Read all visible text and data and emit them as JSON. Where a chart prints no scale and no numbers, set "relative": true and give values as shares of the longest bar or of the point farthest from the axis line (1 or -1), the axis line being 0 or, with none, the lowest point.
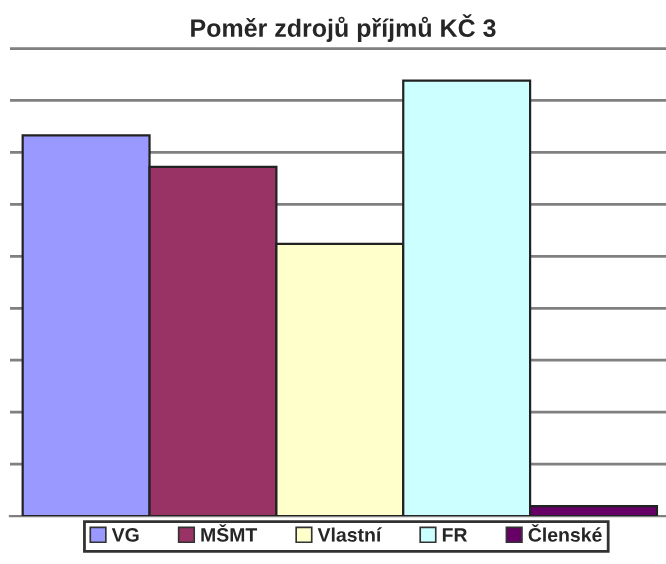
{
  "chart_data": {
    "type": "bar",
    "title": "Poměr zdrojů příjmů KČ 3",
    "relative": true,
    "categories": [
      null
    ],
    "grid": "y",
    "legend": "bottom",
    "series": [
      {
        "name": "VG",
        "color": "#9999ff",
        "values": [
          0.874
        ]
      },
      {
        "name": "MŠMT",
        "color": "#993366",
        "values": [
          0.802
        ]
      },
      {
        "name": "Vlastní",
        "color": "#ffffcc",
        "values": [
          0.625
        ]
      },
      {
        "name": "FR",
        "color": "#ccffff",
        "values": [
          1
        ]
      },
      {
        "name": "Členské",
        "color": "#660066",
        "values": [
          0.023
        ]
      }
    ]
  }
}
